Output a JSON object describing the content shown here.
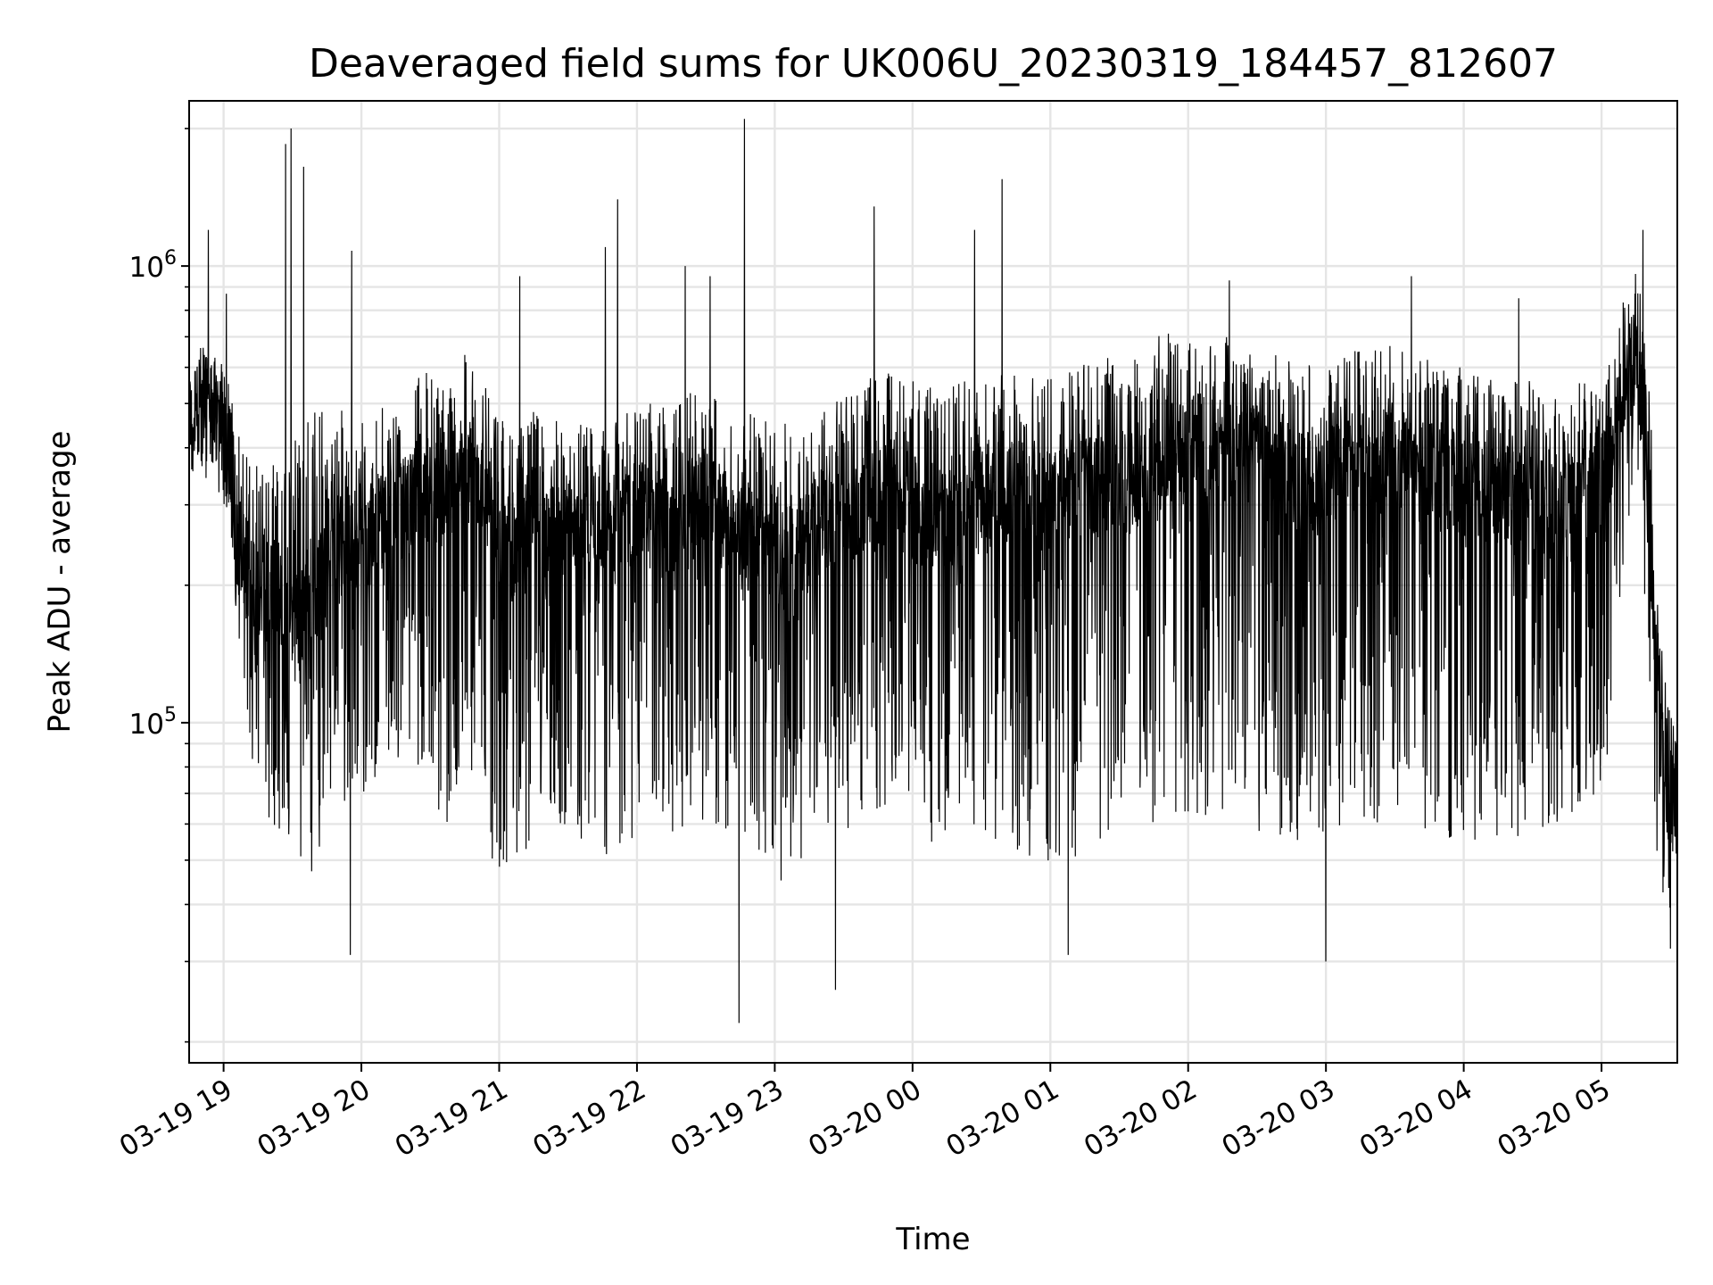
{
  "chart_data": {
    "type": "line",
    "title": "Deaveraged field sums for UK006U_20230319_184457_812607",
    "xlabel": "Time",
    "ylabel": "Peak ADU - average",
    "yscale": "log",
    "ylim": [
      18000,
      2300000
    ],
    "xlim_hours": [
      -0.25,
      10.55
    ],
    "grid": true,
    "line_color": "#000000",
    "grid_color": "#e5e5e5",
    "x_ticks": [
      {
        "hour": 0,
        "label": "03-19 19"
      },
      {
        "hour": 1,
        "label": "03-19 20"
      },
      {
        "hour": 2,
        "label": "03-19 21"
      },
      {
        "hour": 3,
        "label": "03-19 22"
      },
      {
        "hour": 4,
        "label": "03-19 23"
      },
      {
        "hour": 5,
        "label": "03-20 00"
      },
      {
        "hour": 6,
        "label": "03-20 01"
      },
      {
        "hour": 7,
        "label": "03-20 02"
      },
      {
        "hour": 8,
        "label": "03-20 03"
      },
      {
        "hour": 9,
        "label": "03-20 04"
      },
      {
        "hour": 10,
        "label": "03-20 05"
      }
    ],
    "y_major_ticks": [
      {
        "value": 100000,
        "base": "10",
        "exp": "5"
      },
      {
        "value": 1000000,
        "base": "10",
        "exp": "6"
      }
    ],
    "y_minor_ticks": [
      20000,
      30000,
      40000,
      50000,
      60000,
      70000,
      80000,
      90000,
      200000,
      300000,
      400000,
      500000,
      600000,
      700000,
      800000,
      900000,
      2000000
    ],
    "series": [
      {
        "name": "Peak ADU - average",
        "x_hours": [
          -0.25,
          -0.2,
          -0.15,
          -0.1,
          -0.05,
          0.0,
          0.05,
          0.08,
          0.15,
          0.25,
          0.35,
          0.45,
          0.55,
          0.65,
          0.75,
          0.85,
          0.95,
          1.05,
          1.15,
          1.25,
          1.35,
          1.45,
          1.55,
          1.65,
          1.75,
          1.85,
          1.95,
          2.05,
          2.15,
          2.25,
          2.35,
          2.45,
          2.55,
          2.65,
          2.75,
          2.85,
          2.95,
          3.05,
          3.15,
          3.25,
          3.35,
          3.45,
          3.55,
          3.65,
          3.75,
          3.85,
          3.95,
          4.05,
          4.15,
          4.25,
          4.35,
          4.45,
          4.55,
          4.65,
          4.75,
          4.85,
          4.95,
          5.05,
          5.15,
          5.25,
          5.35,
          5.45,
          5.55,
          5.65,
          5.75,
          5.85,
          5.95,
          6.05,
          6.15,
          6.25,
          6.35,
          6.45,
          6.55,
          6.65,
          6.75,
          6.85,
          6.95,
          7.05,
          7.15,
          7.25,
          7.35,
          7.45,
          7.55,
          7.65,
          7.75,
          7.85,
          7.95,
          8.05,
          8.15,
          8.25,
          8.35,
          8.45,
          8.55,
          8.65,
          8.75,
          8.85,
          8.95,
          9.05,
          9.15,
          9.25,
          9.35,
          9.45,
          9.55,
          9.65,
          9.75,
          9.85,
          9.95,
          10.05,
          10.15,
          10.25,
          10.35,
          10.4,
          10.45,
          10.5,
          10.55
        ],
        "center": [
          450000,
          470000,
          480000,
          500000,
          460000,
          420000,
          380000,
          300000,
          220000,
          200000,
          180000,
          160000,
          170000,
          190000,
          210000,
          230000,
          250000,
          260000,
          270000,
          290000,
          310000,
          330000,
          320000,
          300000,
          340000,
          360000,
          280000,
          240000,
          260000,
          280000,
          270000,
          260000,
          250000,
          240000,
          230000,
          260000,
          280000,
          290000,
          270000,
          260000,
          280000,
          300000,
          290000,
          270000,
          250000,
          260000,
          250000,
          230000,
          240000,
          260000,
          270000,
          280000,
          290000,
          300000,
          310000,
          320000,
          300000,
          290000,
          270000,
          280000,
          300000,
          310000,
          300000,
          310000,
          320000,
          320000,
          310000,
          300000,
          310000,
          320000,
          330000,
          340000,
          330000,
          350000,
          360000,
          380000,
          390000,
          400000,
          400000,
          390000,
          380000,
          370000,
          360000,
          350000,
          340000,
          340000,
          330000,
          340000,
          350000,
          360000,
          370000,
          380000,
          370000,
          360000,
          350000,
          340000,
          330000,
          330000,
          320000,
          310000,
          300000,
          310000,
          300000,
          290000,
          300000,
          310000,
          320000,
          350000,
          500000,
          700000,
          300000,
          120000,
          80000,
          70000,
          60000
        ],
        "upper": [
          560000,
          620000,
          700000,
          620000,
          640000,
          600000,
          560000,
          450000,
          400000,
          380000,
          370000,
          360000,
          480000,
          520000,
          500000,
          500000,
          450000,
          470000,
          500000,
          520000,
          560000,
          600000,
          580000,
          560000,
          640000,
          620000,
          480000,
          450000,
          480000,
          480000,
          470000,
          460000,
          470000,
          450000,
          440000,
          470000,
          500000,
          520000,
          500000,
          480000,
          520000,
          540000,
          520000,
          500000,
          470000,
          480000,
          480000,
          450000,
          460000,
          480000,
          500000,
          520000,
          540000,
          560000,
          580000,
          600000,
          560000,
          560000,
          540000,
          540000,
          560000,
          580000,
          560000,
          580000,
          600000,
          600000,
          590000,
          580000,
          600000,
          620000,
          640000,
          660000,
          640000,
          680000,
          700000,
          720000,
          740000,
          750000,
          740000,
          730000,
          700000,
          680000,
          660000,
          640000,
          620000,
          620000,
          600000,
          620000,
          640000,
          660000,
          680000,
          700000,
          680000,
          660000,
          640000,
          620000,
          600000,
          600000,
          580000,
          560000,
          560000,
          570000,
          560000,
          540000,
          560000,
          580000,
          600000,
          680000,
          820000,
          1050000,
          600000,
          200000,
          140000,
          110000,
          90000
        ],
        "lower": [
          350000,
          340000,
          330000,
          360000,
          320000,
          300000,
          260000,
          180000,
          100000,
          70000,
          60000,
          50000,
          45000,
          45000,
          60000,
          65000,
          60000,
          70000,
          80000,
          75000,
          80000,
          80000,
          60000,
          55000,
          70000,
          80000,
          50000,
          45000,
          50000,
          55000,
          60000,
          58000,
          55000,
          48000,
          45000,
          48000,
          55000,
          60000,
          60000,
          55000,
          60000,
          62000,
          58000,
          55000,
          52000,
          50000,
          48000,
          45000,
          48000,
          52000,
          55000,
          58000,
          58000,
          60000,
          62000,
          60000,
          58000,
          55000,
          52000,
          54000,
          56000,
          58000,
          55000,
          54000,
          52000,
          50000,
          48000,
          48000,
          50000,
          52000,
          55000,
          56000,
          54000,
          56000,
          58000,
          60000,
          60000,
          62000,
          62000,
          60000,
          58000,
          58000,
          56000,
          56000,
          54000,
          56000,
          55000,
          56000,
          58000,
          60000,
          60000,
          62000,
          60000,
          58000,
          56000,
          56000,
          55000,
          55000,
          54000,
          54000,
          52000,
          54000,
          55000,
          52000,
          54000,
          56000,
          58000,
          70000,
          150000,
          400000,
          120000,
          50000,
          40000,
          38000,
          42000
        ],
        "spikes": [
          {
            "hour": -0.11,
            "value": 1200000
          },
          {
            "hour": 0.02,
            "value": 870000
          },
          {
            "hour": 0.45,
            "value": 1850000
          },
          {
            "hour": 0.49,
            "value": 2000000
          },
          {
            "hour": 0.58,
            "value": 1650000
          },
          {
            "hour": 0.93,
            "value": 1080000
          },
          {
            "hour": 2.15,
            "value": 950000
          },
          {
            "hour": 2.77,
            "value": 1100000
          },
          {
            "hour": 2.86,
            "value": 1400000
          },
          {
            "hour": 3.35,
            "value": 1000000
          },
          {
            "hour": 3.53,
            "value": 950000
          },
          {
            "hour": 3.78,
            "value": 2100000
          },
          {
            "hour": 4.72,
            "value": 1350000
          },
          {
            "hour": 5.45,
            "value": 1200000
          },
          {
            "hour": 5.65,
            "value": 1550000
          },
          {
            "hour": 7.3,
            "value": 930000
          },
          {
            "hour": 8.62,
            "value": 950000
          },
          {
            "hour": 9.4,
            "value": 850000
          },
          {
            "hour": 10.3,
            "value": 1200000
          },
          {
            "hour": 3.74,
            "value": 22000
          },
          {
            "hour": 4.44,
            "value": 26000
          },
          {
            "hour": 0.92,
            "value": 31000
          },
          {
            "hour": 6.13,
            "value": 31000
          },
          {
            "hour": 8.0,
            "value": 30000
          },
          {
            "hour": 10.5,
            "value": 32000
          }
        ]
      }
    ]
  }
}
